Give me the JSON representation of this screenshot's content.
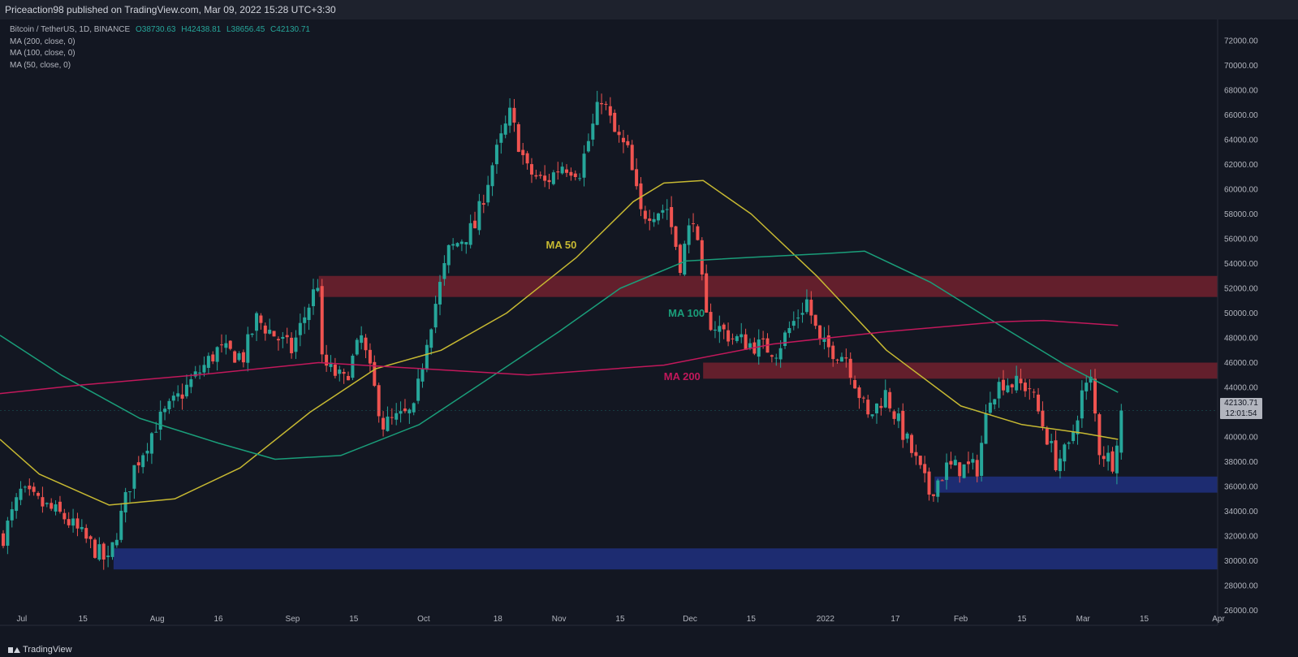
{
  "header": {
    "publisher_line": "Priceaction98 published on TradingView.com, Mar 09, 2022 15:28 UTC+3:30"
  },
  "legend": {
    "symbol": "Bitcoin / TetherUS, 1D, BINANCE",
    "o": "O38730.63",
    "h": "H42438.81",
    "l": "L38656.45",
    "c": "C42130.71",
    "ma_lines": [
      "MA (200, close, 0)",
      "MA (100, close, 0)",
      "MA (50, close, 0)"
    ]
  },
  "price_tag": {
    "price": "42130.71",
    "countdown": "12:01:54"
  },
  "logo": {
    "text": "TradingView"
  },
  "colors": {
    "up": "#26a69a",
    "down": "#ef5350",
    "ma50": "#c7b932",
    "ma100": "#1a9e7a",
    "ma200": "#c2185b",
    "resistance": "#7f2330",
    "support": "#1f2f7a"
  },
  "chart_data": {
    "type": "candlestick",
    "title": "",
    "ylabel": "",
    "xlabel": "",
    "y_range": [
      25000,
      73000
    ],
    "y_ticks": [
      "26000.00",
      "28000.00",
      "30000.00",
      "32000.00",
      "34000.00",
      "36000.00",
      "38000.00",
      "40000.00",
      "42000.00",
      "44000.00",
      "46000.00",
      "48000.00",
      "50000.00",
      "52000.00",
      "54000.00",
      "56000.00",
      "58000.00",
      "60000.00",
      "62000.00",
      "64000.00",
      "66000.00",
      "68000.00",
      "70000.00",
      "72000.00"
    ],
    "x_ticks": [
      {
        "date": "2021-07-01",
        "label": "Jul"
      },
      {
        "date": "2021-07-15",
        "label": "15"
      },
      {
        "date": "2021-08-01",
        "label": "Aug"
      },
      {
        "date": "2021-08-15",
        "label": "16"
      },
      {
        "date": "2021-09-01",
        "label": "Sep"
      },
      {
        "date": "2021-09-15",
        "label": "15"
      },
      {
        "date": "2021-10-01",
        "label": "Oct"
      },
      {
        "date": "2021-10-18",
        "label": "18"
      },
      {
        "date": "2021-11-01",
        "label": "Nov"
      },
      {
        "date": "2021-11-15",
        "label": "15"
      },
      {
        "date": "2021-12-01",
        "label": "Dec"
      },
      {
        "date": "2021-12-15",
        "label": "15"
      },
      {
        "date": "2022-01-01",
        "label": "2022"
      },
      {
        "date": "2022-01-17",
        "label": "17"
      },
      {
        "date": "2022-02-01",
        "label": "Feb"
      },
      {
        "date": "2022-02-15",
        "label": "15"
      },
      {
        "date": "2022-03-01",
        "label": "Mar"
      },
      {
        "date": "2022-03-15",
        "label": "15"
      },
      {
        "date": "2022-04-01",
        "label": "Apr"
      }
    ],
    "x_range": [
      "2021-06-26",
      "2022-04-16"
    ],
    "price_keypoints": [
      [
        "2021-06-26",
        32000
      ],
      [
        "2021-06-30",
        35500
      ],
      [
        "2021-07-05",
        34500
      ],
      [
        "2021-07-10",
        33500
      ],
      [
        "2021-07-20",
        29800
      ],
      [
        "2021-07-26",
        37500
      ],
      [
        "2021-07-31",
        41000
      ],
      [
        "2021-08-07",
        44000
      ],
      [
        "2021-08-14",
        47000
      ],
      [
        "2021-08-20",
        46500
      ],
      [
        "2021-08-23",
        49500
      ],
      [
        "2021-08-31",
        47000
      ],
      [
        "2021-09-06",
        52500
      ],
      [
        "2021-09-07",
        46000
      ],
      [
        "2021-09-12",
        44500
      ],
      [
        "2021-09-16",
        48000
      ],
      [
        "2021-09-21",
        41000
      ],
      [
        "2021-09-28",
        42000
      ],
      [
        "2021-10-01",
        48000
      ],
      [
        "2021-10-06",
        55000
      ],
      [
        "2021-10-12",
        57000
      ],
      [
        "2021-10-16",
        62000
      ],
      [
        "2021-10-20",
        66000
      ],
      [
        "2021-10-24",
        61500
      ],
      [
        "2021-10-28",
        60500
      ],
      [
        "2021-11-01",
        62000
      ],
      [
        "2021-11-05",
        61500
      ],
      [
        "2021-11-10",
        67500
      ],
      [
        "2021-11-13",
        64500
      ],
      [
        "2021-11-16",
        63000
      ],
      [
        "2021-11-19",
        58000
      ],
      [
        "2021-11-25",
        58500
      ],
      [
        "2021-11-28",
        54000
      ],
      [
        "2021-12-01",
        58000
      ],
      [
        "2021-12-04",
        49500
      ],
      [
        "2021-12-10",
        48000
      ],
      [
        "2021-12-14",
        47500
      ],
      [
        "2021-12-20",
        47000
      ],
      [
        "2021-12-27",
        51000
      ],
      [
        "2021-12-30",
        47500
      ],
      [
        "2022-01-05",
        46500
      ],
      [
        "2022-01-10",
        41500
      ],
      [
        "2022-01-14",
        43500
      ],
      [
        "2022-01-21",
        38000
      ],
      [
        "2022-01-24",
        35500
      ],
      [
        "2022-01-28",
        37500
      ],
      [
        "2022-02-04",
        37500
      ],
      [
        "2022-02-07",
        43500
      ],
      [
        "2022-02-10",
        44500
      ],
      [
        "2022-02-16",
        44000
      ],
      [
        "2022-02-22",
        38000
      ],
      [
        "2022-02-25",
        39000
      ],
      [
        "2022-02-28",
        43500
      ],
      [
        "2022-03-02",
        44500
      ],
      [
        "2022-03-04",
        39000
      ],
      [
        "2022-03-07",
        38000
      ],
      [
        "2022-03-09",
        42130.71
      ]
    ],
    "series": [
      {
        "name": "MA 50",
        "label_date": "2021-10-29",
        "label_price": 55200,
        "points": [
          [
            "2021-06-26",
            39800
          ],
          [
            "2021-07-05",
            37000
          ],
          [
            "2021-07-21",
            34500
          ],
          [
            "2021-08-05",
            35000
          ],
          [
            "2021-08-20",
            37500
          ],
          [
            "2021-09-05",
            42000
          ],
          [
            "2021-09-20",
            45500
          ],
          [
            "2021-10-05",
            47000
          ],
          [
            "2021-10-20",
            50000
          ],
          [
            "2021-11-05",
            54500
          ],
          [
            "2021-11-18",
            59000
          ],
          [
            "2021-11-25",
            60500
          ],
          [
            "2021-12-04",
            60700
          ],
          [
            "2021-12-15",
            58000
          ],
          [
            "2021-12-30",
            53000
          ],
          [
            "2022-01-15",
            47000
          ],
          [
            "2022-02-01",
            42500
          ],
          [
            "2022-02-15",
            41000
          ],
          [
            "2022-03-01",
            40300
          ],
          [
            "2022-03-09",
            39800
          ]
        ]
      },
      {
        "name": "MA 100",
        "label_date": "2021-11-26",
        "label_price": 49700,
        "points": [
          [
            "2021-06-26",
            48200
          ],
          [
            "2021-07-10",
            45000
          ],
          [
            "2021-07-28",
            41500
          ],
          [
            "2021-08-15",
            39500
          ],
          [
            "2021-08-28",
            38200
          ],
          [
            "2021-09-12",
            38500
          ],
          [
            "2021-09-30",
            41000
          ],
          [
            "2021-10-15",
            44500
          ],
          [
            "2021-11-01",
            48500
          ],
          [
            "2021-11-15",
            52000
          ],
          [
            "2021-11-30",
            54200
          ],
          [
            "2021-12-15",
            54500
          ],
          [
            "2022-01-01",
            54800
          ],
          [
            "2022-01-10",
            55000
          ],
          [
            "2022-01-25",
            52500
          ],
          [
            "2022-02-10",
            49000
          ],
          [
            "2022-02-25",
            45800
          ],
          [
            "2022-03-09",
            43600
          ]
        ]
      },
      {
        "name": "MA 200",
        "label_date": "2021-11-25",
        "label_price": 44600,
        "points": [
          [
            "2021-06-26",
            43500
          ],
          [
            "2021-07-15",
            44200
          ],
          [
            "2021-08-10",
            45000
          ],
          [
            "2021-09-07",
            46000
          ],
          [
            "2021-10-01",
            45500
          ],
          [
            "2021-10-25",
            45000
          ],
          [
            "2021-11-25",
            45800
          ],
          [
            "2021-12-20",
            47500
          ],
          [
            "2022-01-15",
            48500
          ],
          [
            "2022-02-10",
            49300
          ],
          [
            "2022-02-20",
            49400
          ],
          [
            "2022-03-09",
            49000
          ]
        ]
      }
    ],
    "zones": [
      {
        "type": "resistance",
        "from": "2021-09-07",
        "to_price": 53000,
        "from_price": 51300
      },
      {
        "type": "resistance",
        "from": "2021-12-04",
        "to_price": 46000,
        "from_price": 44700
      },
      {
        "type": "support",
        "from": "2021-07-22",
        "to_price": 31000,
        "from_price": 29300
      },
      {
        "type": "support",
        "from": "2022-01-26",
        "to_price": 36800,
        "from_price": 35500
      }
    ]
  }
}
